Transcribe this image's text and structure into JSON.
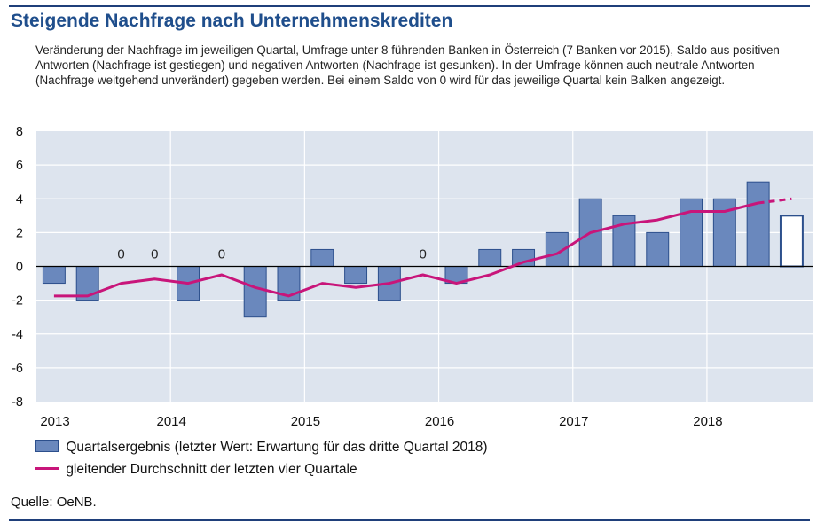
{
  "title": "Steigende Nachfrage nach Unternehmenskrediten",
  "subtitle": "Veränderung der Nachfrage im jeweiligen Quartal, Umfrage unter 8 führenden Banken in Österreich (7 Banken vor 2015), Saldo aus positiven Antworten (Nachfrage ist gestiegen) und negativen Antworten (Nachfrage ist gesunken). In der Umfrage können auch neutrale Antworten (Nachfrage weitgehend unverändert) gegeben werden. Bei einem Saldo von 0 wird für das jeweilige Quartal kein Balken angezeigt.",
  "source": "Quelle: OeNB.",
  "colors": {
    "bar_fill": "#6a88bd",
    "bar_stroke": "#2c4f8c",
    "line": "#c8157a",
    "title": "#1f4e8c"
  },
  "chart_data": {
    "type": "bar",
    "title": "Steigende Nachfrage nach Unternehmenskrediten",
    "xlabel": "",
    "ylabel": "",
    "ylim": [
      -8,
      8
    ],
    "yticks": [
      8,
      6,
      4,
      2,
      0,
      -2,
      -4,
      -6,
      -8
    ],
    "year_labels": [
      "2013",
      "2014",
      "2015",
      "2016",
      "2017",
      "2018"
    ],
    "categories": [
      "2013 Q1",
      "2013 Q2",
      "2013 Q3",
      "2013 Q4",
      "2014 Q1",
      "2014 Q2",
      "2014 Q3",
      "2014 Q4",
      "2015 Q1",
      "2015 Q2",
      "2015 Q3",
      "2015 Q4",
      "2016 Q1",
      "2016 Q2",
      "2016 Q3",
      "2016 Q4",
      "2017 Q1",
      "2017 Q2",
      "2017 Q3",
      "2017 Q4",
      "2018 Q1",
      "2018 Q2",
      "2018 Q3"
    ],
    "grid": true,
    "legend_position": "bottom",
    "series": [
      {
        "name": "Quartalsergebnis (letzter Wert: Erwartung für das dritte Quartal 2018)",
        "type": "bar",
        "values": [
          -1,
          -2,
          0,
          0,
          -2,
          0,
          -3,
          -2,
          1,
          -1,
          -2,
          0,
          -1,
          1,
          1,
          2,
          4,
          3,
          2,
          4,
          4,
          5,
          3
        ],
        "zero_label": "0",
        "last_is_expectation": true
      },
      {
        "name": "gleitender Durchschnitt der letzten vier Quartale",
        "type": "line",
        "values": [
          -1.75,
          -1.75,
          -1.0,
          -0.75,
          -1.0,
          -0.5,
          -1.25,
          -1.75,
          -1.0,
          -1.25,
          -1.0,
          -0.5,
          -1.0,
          -0.5,
          0.25,
          0.75,
          2.0,
          2.5,
          2.75,
          3.25,
          3.25,
          3.75,
          4.0
        ],
        "dashed_from_index": 21
      }
    ]
  }
}
